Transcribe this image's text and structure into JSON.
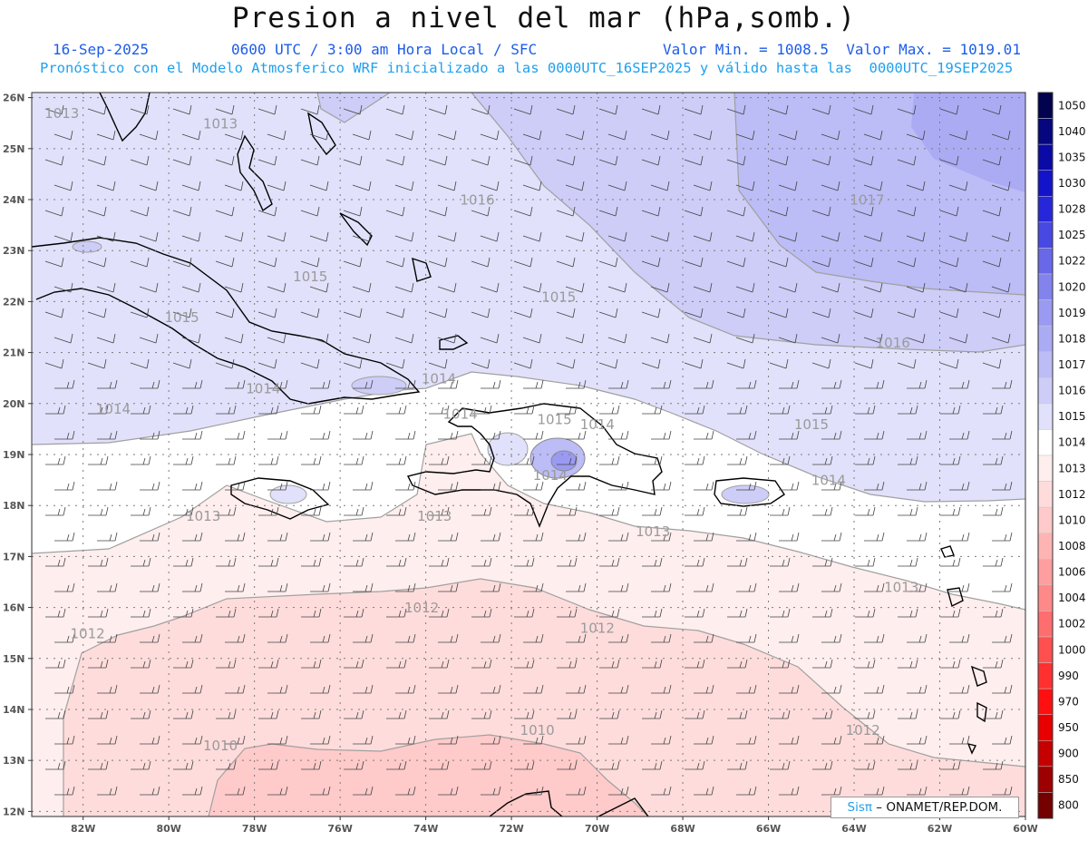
{
  "header": {
    "title": "Presion a nivel del mar (hPa,somb.)",
    "date": "16-Sep-2025",
    "time": "0600 UTC / 3:00 am Hora Local / SFC",
    "minmax": "Valor Min. = 1008.5  Valor Max. = 1019.01",
    "model_info": "Pronóstico con el Modelo Atmosferico WRF inicializado a las 0000UTC_16SEP2025 y válido hasta las  0000UTC_19SEP2025"
  },
  "map": {
    "lon_range": [
      -83.2,
      -60.0
    ],
    "lat_range": [
      11.9,
      26.1
    ],
    "lat_ticks": [
      "26N",
      "25N",
      "24N",
      "23N",
      "22N",
      "21N",
      "20N",
      "19N",
      "18N",
      "17N",
      "16N",
      "15N",
      "14N",
      "13N",
      "12N"
    ],
    "lon_ticks": [
      "82W",
      "80W",
      "78W",
      "76W",
      "74W",
      "72W",
      "70W",
      "68W",
      "66W",
      "64W",
      "62W",
      "60W"
    ],
    "isobar_labels": [
      {
        "text": "1013",
        "lon": -82.9,
        "lat": 25.6
      },
      {
        "text": "1013",
        "lon": -79.2,
        "lat": 25.4
      },
      {
        "text": "1016",
        "lon": -73.2,
        "lat": 23.9
      },
      {
        "text": "1017",
        "lon": -64.1,
        "lat": 23.9
      },
      {
        "text": "1015",
        "lon": -77.1,
        "lat": 22.4
      },
      {
        "text": "1015",
        "lon": -80.1,
        "lat": 21.6
      },
      {
        "text": "1015",
        "lon": -71.3,
        "lat": 22.0
      },
      {
        "text": "1016",
        "lon": -63.5,
        "lat": 21.1
      },
      {
        "text": "1014",
        "lon": -78.2,
        "lat": 20.2
      },
      {
        "text": "1014",
        "lon": -74.1,
        "lat": 20.4
      },
      {
        "text": "1014",
        "lon": -81.7,
        "lat": 19.8
      },
      {
        "text": "1014",
        "lon": -73.6,
        "lat": 19.7
      },
      {
        "text": "1015",
        "lon": -71.4,
        "lat": 19.6
      },
      {
        "text": "1014",
        "lon": -70.4,
        "lat": 19.5
      },
      {
        "text": "1015",
        "lon": -65.4,
        "lat": 19.5
      },
      {
        "text": "1014",
        "lon": -71.5,
        "lat": 18.5
      },
      {
        "text": "1014",
        "lon": -65.0,
        "lat": 18.4
      },
      {
        "text": "1013",
        "lon": -79.6,
        "lat": 17.7
      },
      {
        "text": "1013",
        "lon": -74.2,
        "lat": 17.7
      },
      {
        "text": "1013",
        "lon": -69.1,
        "lat": 17.4
      },
      {
        "text": "1013",
        "lon": -63.3,
        "lat": 16.3
      },
      {
        "text": "1012",
        "lon": -74.5,
        "lat": 15.9
      },
      {
        "text": "1012",
        "lon": -82.3,
        "lat": 15.4
      },
      {
        "text": "1012",
        "lon": -70.4,
        "lat": 15.5
      },
      {
        "text": "1012",
        "lon": -64.2,
        "lat": 13.5
      },
      {
        "text": "1010",
        "lon": -79.2,
        "lat": 13.2
      },
      {
        "text": "1010",
        "lon": -71.8,
        "lat": 13.5
      }
    ]
  },
  "colorbar": {
    "labels": [
      "1050",
      "1040",
      "1035",
      "1030",
      "1028",
      "1025",
      "1022",
      "1020",
      "1019",
      "1018",
      "1017",
      "1016",
      "1015",
      "1014",
      "1013",
      "1012",
      "1010",
      "1008",
      "1006",
      "1004",
      "1002",
      "1000",
      "990",
      "970",
      "950",
      "900",
      "850",
      "800"
    ],
    "colors": [
      "#02024f",
      "#06067e",
      "#0a0aa6",
      "#1313c9",
      "#2727da",
      "#4848e2",
      "#6868e8",
      "#8383ee",
      "#9a9af2",
      "#ababf4",
      "#bcbcf6",
      "#cdcdf8",
      "#e1e1fb",
      "#ffffff",
      "#ffeeee",
      "#ffdcdc",
      "#ffcaca",
      "#ffb4b4",
      "#ff9e9e",
      "#ff8888",
      "#ff6e6e",
      "#ff5050",
      "#ff3030",
      "#ff1010",
      "#e80000",
      "#c40000",
      "#9c0000",
      "#740000"
    ]
  },
  "credit": {
    "brand": "Sisπ",
    "org": " – ONAMET/REP.DOM."
  }
}
